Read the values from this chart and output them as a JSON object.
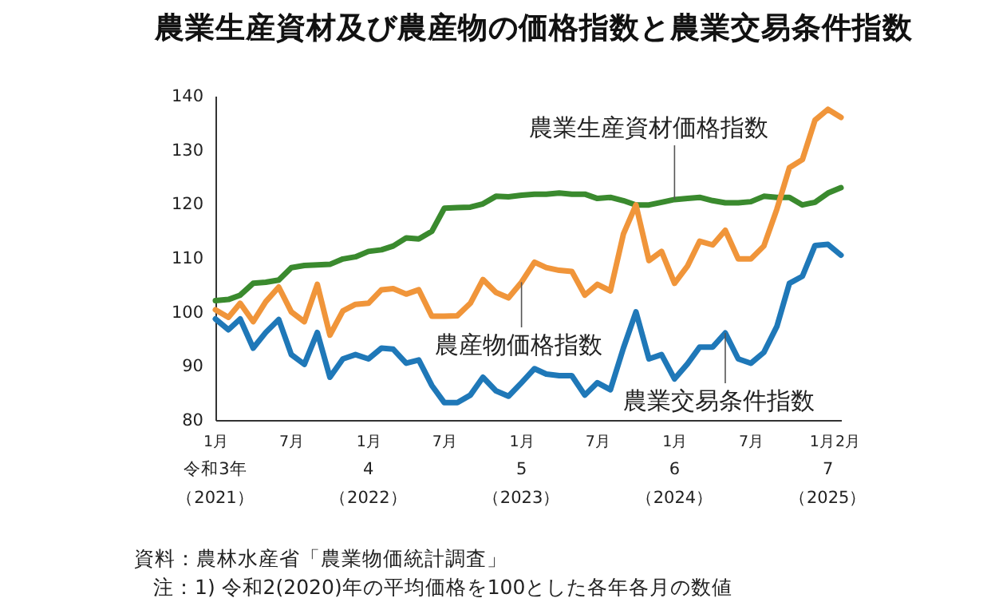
{
  "chart_data": {
    "type": "line",
    "title": "農業生産資材及び農産物の価格指数と農業交易条件指数",
    "x": [
      "2021-01",
      "2021-02",
      "2021-03",
      "2021-04",
      "2021-05",
      "2021-06",
      "2021-07",
      "2021-08",
      "2021-09",
      "2021-10",
      "2021-11",
      "2021-12",
      "2022-01",
      "2022-02",
      "2022-03",
      "2022-04",
      "2022-05",
      "2022-06",
      "2022-07",
      "2022-08",
      "2022-09",
      "2022-10",
      "2022-11",
      "2022-12",
      "2023-01",
      "2023-02",
      "2023-03",
      "2023-04",
      "2023-05",
      "2023-06",
      "2023-07",
      "2023-08",
      "2023-09",
      "2023-10",
      "2023-11",
      "2023-12",
      "2024-01",
      "2024-02",
      "2024-03",
      "2024-04",
      "2024-05",
      "2024-06",
      "2024-07",
      "2024-08",
      "2024-09",
      "2024-10",
      "2024-11",
      "2024-12",
      "2025-01",
      "2025-02"
    ],
    "series": [
      {
        "name": "農業生産資材価格指数",
        "color": "#3a8a2e",
        "values": [
          102.1,
          102.3,
          103.1,
          105.3,
          105.5,
          105.9,
          108.2,
          108.6,
          108.7,
          108.8,
          109.8,
          110.2,
          111.2,
          111.5,
          112.2,
          113.7,
          113.5,
          114.9,
          119.2,
          119.3,
          119.4,
          120,
          121.4,
          121.3,
          121.6,
          121.8,
          121.8,
          122,
          121.8,
          121.8,
          121,
          121.2,
          120.6,
          119.8,
          119.8,
          120.3,
          120.8,
          121,
          121.2,
          120.6,
          120.2,
          120.2,
          120.4,
          121.4,
          121.2,
          121.2,
          119.8,
          120.3,
          122,
          123
        ]
      },
      {
        "name": "農産物価格指数",
        "color": "#f0953a",
        "values": [
          100.4,
          99,
          101.6,
          98.2,
          101.9,
          104.6,
          100,
          98.2,
          105.1,
          95.7,
          100.2,
          101.4,
          101.6,
          104.1,
          104.3,
          103.3,
          104.1,
          99.2,
          99.2,
          99.3,
          101.6,
          106,
          103.6,
          102.6,
          105.5,
          109.2,
          108.2,
          107.7,
          107.5,
          103.1,
          105.1,
          103.9,
          114.4,
          119.8,
          109.5,
          111.2,
          105.3,
          108.5,
          113.1,
          112.4,
          115.1,
          109.8,
          109.8,
          112.2,
          119,
          126.7,
          128.2,
          135.5,
          137.5,
          136
        ]
      },
      {
        "name": "農業交易条件指数",
        "color": "#1f78b8",
        "values": [
          98.7,
          96.7,
          98.7,
          93.3,
          96.2,
          98.6,
          92.1,
          90.3,
          96.2,
          87.9,
          91.3,
          92.1,
          91.3,
          93.3,
          93.1,
          90.5,
          91.1,
          86.4,
          83.2,
          83.2,
          84.6,
          87.9,
          85.4,
          84.4,
          86.9,
          89.5,
          88.5,
          88.2,
          88.2,
          84.6,
          86.9,
          85.6,
          93.3,
          100,
          91.3,
          92.1,
          87.6,
          90.4,
          93.5,
          93.5,
          96.1,
          91.3,
          90.5,
          92.5,
          97.3,
          105.3,
          106.6,
          112.3,
          112.5,
          110.5
        ]
      }
    ],
    "xlim": [
      "2021-01",
      "2025-02"
    ],
    "xticks": [
      {
        "value": "2021-01",
        "label": "1月"
      },
      {
        "value": "2021-07",
        "label": "7月"
      },
      {
        "value": "2022-01",
        "label": "1月"
      },
      {
        "value": "2022-07",
        "label": "7月"
      },
      {
        "value": "2023-01",
        "label": "1月"
      },
      {
        "value": "2023-07",
        "label": "7月"
      },
      {
        "value": "2024-01",
        "label": "1月"
      },
      {
        "value": "2024-07",
        "label": "7月"
      },
      {
        "value": "2025-01",
        "label": "1月"
      },
      {
        "value": "2025-02",
        "label": "2月"
      }
    ],
    "ylim": [
      80,
      140
    ],
    "yticks": [
      80,
      90,
      100,
      110,
      120,
      130,
      140
    ],
    "grid": false,
    "legend": false,
    "annotations": [
      "資料：農林水産省「農業物価統計調査」",
      "注：1) 令和2(2020)年の平均価格を100とした各年各月の数値",
      "令和3年",
      "（2021）",
      "4",
      "（2022）",
      "5",
      "（2023）",
      "6",
      "（2024）",
      "7",
      "（2025）"
    ]
  }
}
